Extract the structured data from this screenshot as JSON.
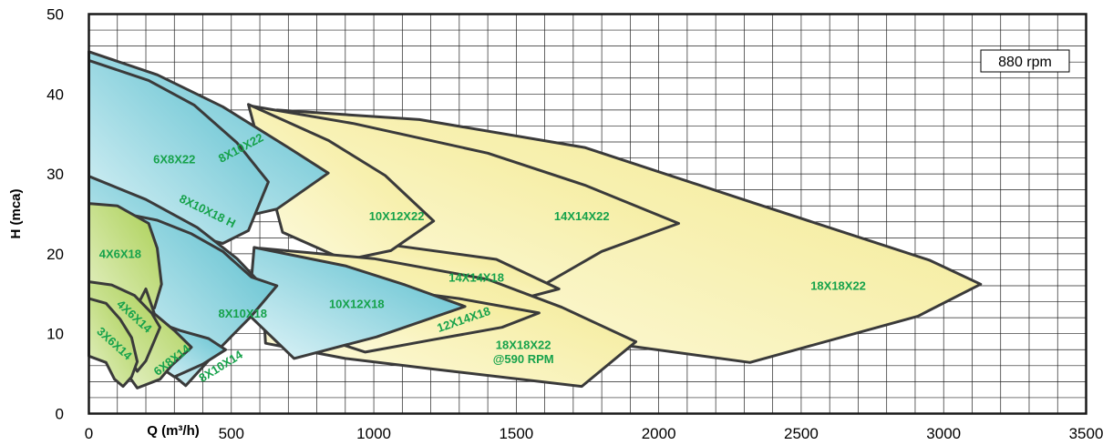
{
  "chart_data": {
    "type": "area",
    "title": "",
    "xlabel": "Q (m³/h)",
    "ylabel": "H (mca)",
    "xlim": [
      0,
      3500
    ],
    "ylim": [
      0,
      50
    ],
    "grid": true,
    "speed_label": "880 rpm",
    "x_ticks": [
      "0",
      "500",
      "1000",
      "1500",
      "2000",
      "2500",
      "3000",
      "3500"
    ],
    "y_ticks": [
      "0",
      "10",
      "20",
      "30",
      "40",
      "50"
    ],
    "colors": {
      "blue_dark": "#54bccc",
      "blue_light": "#e0f4f8",
      "yellow_dark": "#f3e88a",
      "yellow_light": "#fdfbe2",
      "green_dark": "#a9cf52",
      "green_light": "#e6f1c8",
      "outline": "#3a3a3a",
      "label": "#16a24b"
    },
    "series": [
      {
        "name": "18X18X22",
        "fill": "yellow",
        "label_at": [
          2630,
          15.5
        ],
        "label_angle": 0,
        "points": [
          [
            660,
            38
          ],
          [
            1160,
            36.8
          ],
          [
            1740,
            33.3
          ],
          [
            2330,
            26.4
          ],
          [
            2950,
            19.2
          ],
          [
            3130,
            16.2
          ],
          [
            2910,
            12.2
          ],
          [
            2320,
            6.4
          ],
          [
            1480,
            10.5
          ],
          [
            1060,
            16.7
          ],
          [
            820,
            22.3
          ]
        ]
      },
      {
        "name": "14X14X22",
        "fill": "yellow",
        "label_at": [
          1730,
          24.2
        ],
        "label_angle": 0,
        "points": [
          [
            570,
            38.5
          ],
          [
            930,
            36.3
          ],
          [
            1400,
            32.6
          ],
          [
            1740,
            28.6
          ],
          [
            2070,
            23.8
          ],
          [
            1800,
            20.3
          ],
          [
            1600,
            16.2
          ],
          [
            1060,
            20.4
          ],
          [
            800,
            25.2
          ]
        ]
      },
      {
        "name": "14X14X18",
        "fill": "yellow",
        "label_at": [
          1360,
          16.5
        ],
        "label_angle": 0,
        "points": [
          [
            870,
            21.5
          ],
          [
            1060,
            21.1
          ],
          [
            1430,
            19.3
          ],
          [
            1650,
            15.6
          ],
          [
            1480,
            14.0
          ],
          [
            1060,
            16.2
          ],
          [
            860,
            18.2
          ]
        ]
      },
      {
        "name": "10X12X22",
        "fill": "yellow",
        "label_at": [
          1080,
          24.2
        ],
        "label_angle": 0,
        "points": [
          [
            560,
            38.7
          ],
          [
            840,
            34.2
          ],
          [
            1040,
            29.8
          ],
          [
            1210,
            24.1
          ],
          [
            1060,
            20.4
          ],
          [
            900,
            19.2
          ],
          [
            680,
            22.7
          ]
        ]
      },
      {
        "name": "18X18X22 @590 RPM",
        "fill": "yellow",
        "label_at": [
          1525,
          7.8
        ],
        "label_angle": 0,
        "points": [
          [
            600,
            20.7
          ],
          [
            1000,
            19.4
          ],
          [
            1400,
            16.8
          ],
          [
            1660,
            13.3
          ],
          [
            1920,
            9.0
          ],
          [
            1730,
            3.4
          ],
          [
            1200,
            5.6
          ],
          [
            900,
            6.9
          ],
          [
            620,
            8.8
          ]
        ]
      },
      {
        "name": "12X14X18",
        "fill": "yellow",
        "label_at": [
          1320,
          11.3
        ],
        "label_angle": -19,
        "points": [
          [
            750,
            16.3
          ],
          [
            1000,
            15.8
          ],
          [
            1300,
            14.4
          ],
          [
            1580,
            12.6
          ],
          [
            1450,
            10.8
          ],
          [
            1200,
            9.2
          ],
          [
            970,
            7.7
          ],
          [
            770,
            10.0
          ]
        ]
      },
      {
        "name": "10X12X18",
        "fill": "blue",
        "label_at": [
          940,
          13.2
        ],
        "label_angle": 0,
        "points": [
          [
            580,
            20.8
          ],
          [
            900,
            18.5
          ],
          [
            1110,
            16.1
          ],
          [
            1320,
            13.4
          ],
          [
            1010,
            9.6
          ],
          [
            720,
            6.9
          ],
          [
            560,
            12.4
          ]
        ]
      },
      {
        "name": "8X10X22",
        "fill": "blue",
        "label_at": [
          540,
          32.8
        ],
        "label_angle": -28,
        "points": [
          [
            0,
            45.3
          ],
          [
            240,
            42.4
          ],
          [
            470,
            38.4
          ],
          [
            700,
            33.3
          ],
          [
            840,
            30.1
          ],
          [
            660,
            25.6
          ],
          [
            490,
            24.2
          ],
          [
            380,
            27.4
          ],
          [
            200,
            31.8
          ],
          [
            0,
            34.2
          ]
        ]
      },
      {
        "name": "6X8X22",
        "fill": "blue",
        "label_at": [
          300,
          31.3
        ],
        "label_angle": 0,
        "points": [
          [
            0,
            44.2
          ],
          [
            210,
            41.7
          ],
          [
            370,
            38.6
          ],
          [
            520,
            33.9
          ],
          [
            630,
            29.0
          ],
          [
            560,
            22.9
          ],
          [
            470,
            21.3
          ],
          [
            290,
            23.0
          ],
          [
            160,
            25.8
          ],
          [
            0,
            29.7
          ]
        ]
      },
      {
        "name": "8X10X18 H",
        "fill": "blue",
        "label_at": [
          410,
          24.9
        ],
        "label_angle": 26,
        "points": [
          [
            0,
            29.7
          ],
          [
            200,
            26.8
          ],
          [
            380,
            23.3
          ],
          [
            520,
            19.4
          ],
          [
            600,
            16.4
          ],
          [
            450,
            12.8
          ],
          [
            340,
            14.2
          ],
          [
            180,
            17.2
          ],
          [
            0,
            20.5
          ]
        ]
      },
      {
        "name": "8X10X18",
        "fill": "blue",
        "label_at": [
          540,
          12.0
        ],
        "label_angle": 0,
        "points": [
          [
            100,
            25.2
          ],
          [
            240,
            24.2
          ],
          [
            360,
            22.5
          ],
          [
            470,
            20.3
          ],
          [
            570,
            17.1
          ],
          [
            660,
            16.0
          ],
          [
            570,
            12.2
          ],
          [
            460,
            8.2
          ],
          [
            340,
            3.5
          ],
          [
            280,
            5.3
          ],
          [
            180,
            9.2
          ],
          [
            100,
            12.3
          ]
        ]
      },
      {
        "name": "8X10X14",
        "fill": "blue",
        "label_at": [
          470,
          5.5
        ],
        "label_angle": -32,
        "points": [
          [
            210,
            11.8
          ],
          [
            320,
            10.4
          ],
          [
            420,
            9.4
          ],
          [
            480,
            8.0
          ],
          [
            400,
            6.2
          ],
          [
            300,
            4.6
          ],
          [
            220,
            6.5
          ]
        ]
      },
      {
        "name": "4X6X18",
        "fill": "green",
        "label_at": [
          110,
          19.5
        ],
        "label_angle": 0,
        "points": [
          [
            0,
            26.3
          ],
          [
            100,
            26.0
          ],
          [
            210,
            23.8
          ],
          [
            240,
            20.7
          ],
          [
            255,
            16.2
          ],
          [
            230,
            13.2
          ],
          [
            120,
            12.2
          ],
          [
            0,
            12.5
          ]
        ]
      },
      {
        "name": "6X8X14",
        "fill": "green",
        "label_at": [
          300,
          6.3
        ],
        "label_angle": -38,
        "points": [
          [
            200,
            15.6
          ],
          [
            230,
            12.5
          ],
          [
            300,
            10.4
          ],
          [
            360,
            8.3
          ],
          [
            290,
            6.0
          ],
          [
            250,
            4.3
          ],
          [
            170,
            3.2
          ],
          [
            110,
            6.2
          ],
          [
            120,
            10.0
          ]
        ]
      },
      {
        "name": "4X6X14",
        "fill": "green",
        "label_at": [
          150,
          11.8
        ],
        "label_angle": 42,
        "points": [
          [
            0,
            16.5
          ],
          [
            80,
            16.1
          ],
          [
            160,
            14.8
          ],
          [
            220,
            12.6
          ],
          [
            250,
            10.8
          ],
          [
            200,
            6.6
          ],
          [
            170,
            5.3
          ],
          [
            120,
            8.4
          ],
          [
            0,
            8.6
          ]
        ]
      },
      {
        "name": "3X6X14",
        "fill": "green",
        "label_at": [
          80,
          8.4
        ],
        "label_angle": 42,
        "points": [
          [
            0,
            14.4
          ],
          [
            60,
            13.8
          ],
          [
            110,
            11.8
          ],
          [
            150,
            9.5
          ],
          [
            170,
            6.5
          ],
          [
            150,
            4.6
          ],
          [
            120,
            3.4
          ],
          [
            90,
            4.3
          ],
          [
            60,
            6.4
          ],
          [
            0,
            7.2
          ]
        ]
      }
    ]
  }
}
